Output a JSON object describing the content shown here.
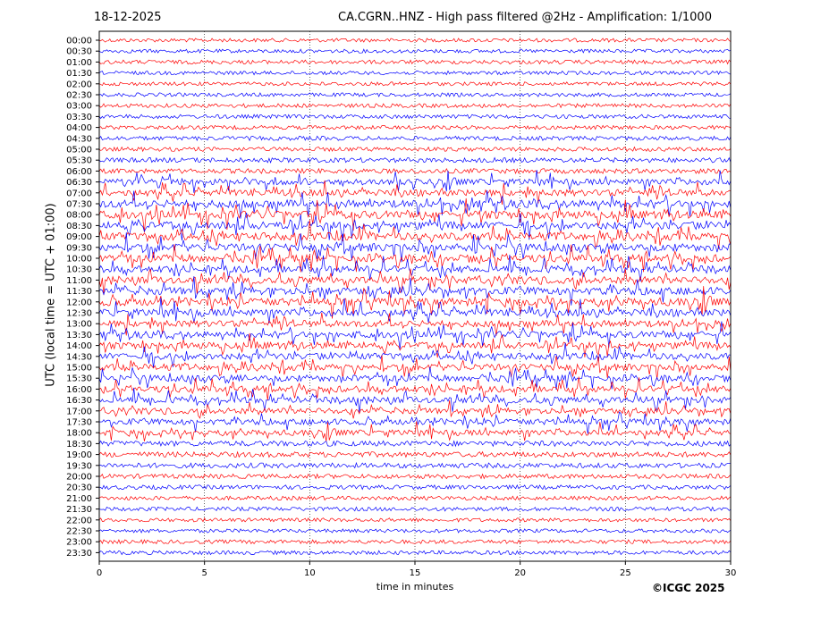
{
  "header": {
    "date": "18-12-2025",
    "title": "CA.CGRN..HNZ - High pass filtered @2Hz - Amplification: 1/1000"
  },
  "footer": {
    "credit": "©ICGC 2025"
  },
  "chart_data": {
    "type": "line",
    "title": "CA.CGRN..HNZ - High pass filtered @2Hz - Amplification: 1/1000",
    "xlabel": "time in minutes",
    "ylabel": "UTC (local time = UTC + 01:00)",
    "xlim": [
      0,
      30
    ],
    "xticks": [
      0,
      5,
      10,
      15,
      20,
      25,
      30
    ],
    "grid": "vertical dotted at each 5 min",
    "trace_colors": {
      "even_rows": "#ff0000",
      "odd_rows": "#0000ff"
    },
    "rows": [
      "00:00",
      "00:30",
      "01:00",
      "01:30",
      "02:00",
      "02:30",
      "03:00",
      "03:30",
      "04:00",
      "04:30",
      "05:00",
      "05:30",
      "06:00",
      "06:30",
      "07:00",
      "07:30",
      "08:00",
      "08:30",
      "09:00",
      "09:30",
      "10:00",
      "10:30",
      "11:00",
      "11:30",
      "12:00",
      "12:30",
      "13:00",
      "13:30",
      "14:00",
      "14:30",
      "15:00",
      "15:30",
      "16:00",
      "16:30",
      "17:00",
      "17:30",
      "18:00",
      "18:30",
      "19:00",
      "19:30",
      "20:00",
      "20:30",
      "21:00",
      "21:30",
      "22:00",
      "22:30",
      "23:00",
      "23:30"
    ],
    "activity_level": [
      0.3,
      0.3,
      0.35,
      0.3,
      0.3,
      0.3,
      0.35,
      0.35,
      0.35,
      0.4,
      0.4,
      0.5,
      0.5,
      0.7,
      0.8,
      1.0,
      1.0,
      1.0,
      1.0,
      1.0,
      1.0,
      0.9,
      0.9,
      1.0,
      1.0,
      0.9,
      0.8,
      0.8,
      0.8,
      0.8,
      0.8,
      0.8,
      0.8,
      0.75,
      0.7,
      0.7,
      0.65,
      0.6,
      0.6,
      0.55,
      0.45,
      0.4,
      0.35,
      0.35,
      0.3,
      0.3,
      0.35,
      0.35
    ]
  }
}
